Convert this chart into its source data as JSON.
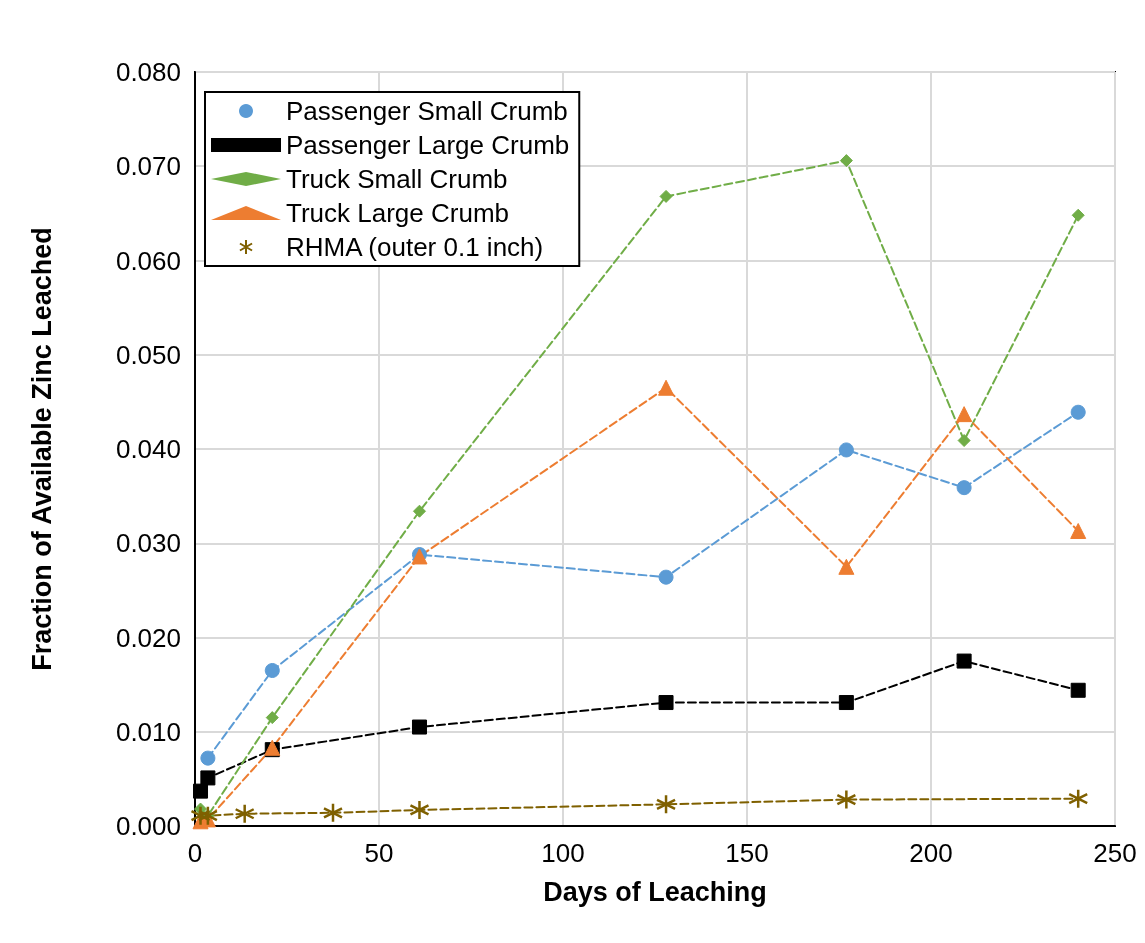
{
  "chart_data": {
    "type": "line",
    "xlabel": "Days of Leaching",
    "ylabel": "Fraction of Available Zinc Leached",
    "xlim": [
      0,
      250
    ],
    "xticks": [
      0,
      50,
      100,
      150,
      200,
      250
    ],
    "ylim": [
      0,
      0.08
    ],
    "yticks": [
      {
        "value": 0,
        "label": "0.000"
      },
      {
        "value": 0.01,
        "label": "0.010"
      },
      {
        "value": 0.02,
        "label": "0.020"
      },
      {
        "value": 0.03,
        "label": "0.030"
      },
      {
        "value": 0.04,
        "label": "0.040"
      },
      {
        "value": 0.05,
        "label": "0.050"
      },
      {
        "value": 0.06,
        "label": "0.060"
      },
      {
        "value": 0.07,
        "label": "0.070"
      },
      {
        "value": 0.08,
        "label": "0.080"
      }
    ],
    "grid": true,
    "legend": "top left",
    "line_style": "dashed",
    "series": [
      {
        "name": "Passenger Small Crumb",
        "color": "#5b9bd5",
        "marker": "circle",
        "x": [
          3.5,
          21,
          61,
          128,
          177,
          209,
          240
        ],
        "values": [
          0.0072,
          0.0165,
          0.0288,
          0.0264,
          0.0399,
          0.0359,
          0.0439
        ]
      },
      {
        "name": "Passenger Large Crumb",
        "color": "#000000",
        "marker": "square",
        "x": [
          1.5,
          3.5,
          21,
          61,
          128,
          177,
          209,
          240
        ],
        "values": [
          0.0037,
          0.0051,
          0.0081,
          0.0105,
          0.0131,
          0.0131,
          0.0175,
          0.0144
        ]
      },
      {
        "name": "Truck Small Crumb",
        "color": "#70ad47",
        "marker": "diamond",
        "x": [
          1.5,
          3.5,
          21,
          61,
          128,
          177,
          209,
          240
        ],
        "values": [
          0.0018,
          0.0011,
          0.0115,
          0.0334,
          0.0668,
          0.0706,
          0.0409,
          0.0648
        ]
      },
      {
        "name": "Truck Large Crumb",
        "color": "#ed7d31",
        "marker": "triangle",
        "x": [
          1.5,
          3.5,
          21,
          61,
          128,
          177,
          209,
          240
        ],
        "values": [
          0.0005,
          0.0007,
          0.0083,
          0.0286,
          0.0465,
          0.0275,
          0.0437,
          0.0313
        ]
      },
      {
        "name": "RHMA (outer 0.1 inch)",
        "color": "#7f6000",
        "marker": "cross",
        "x": [
          1.5,
          3.5,
          13.5,
          37.5,
          61,
          128,
          177,
          240
        ],
        "values": [
          0.0011,
          0.0011,
          0.0013,
          0.0014,
          0.0017,
          0.0023,
          0.0028,
          0.0029
        ]
      }
    ]
  }
}
